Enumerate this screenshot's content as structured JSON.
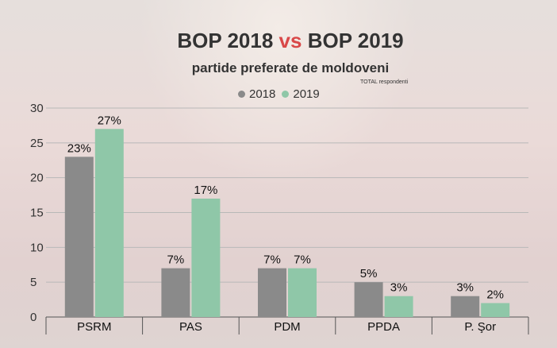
{
  "header": {
    "title_left": "BOP 2018",
    "title_vs": "vs",
    "title_right": "BOP 2019",
    "subtitle": "partide preferate de moldoveni",
    "note": "TOTAL respondenti"
  },
  "colors": {
    "2018": "#8a8a8a",
    "2019": "#8fc7a8",
    "vs": "#d94848"
  },
  "chart_data": {
    "type": "bar",
    "categories": [
      "PSRM",
      "PAS",
      "PDM",
      "PPDA",
      "P. Şor"
    ],
    "series": [
      {
        "name": "2018",
        "values": [
          23,
          7,
          7,
          5,
          3
        ],
        "labels": [
          "23%",
          "7%",
          "7%",
          "5%",
          "3%"
        ]
      },
      {
        "name": "2019",
        "values": [
          27,
          17,
          7,
          3,
          2
        ],
        "labels": [
          "27%",
          "17%",
          "7%",
          "3%",
          "2%"
        ]
      }
    ],
    "yticks": [
      "0",
      "5",
      "10",
      "15",
      "20",
      "25",
      "30"
    ],
    "ylim": [
      0,
      30
    ],
    "grid": true,
    "legend_position": "top"
  }
}
